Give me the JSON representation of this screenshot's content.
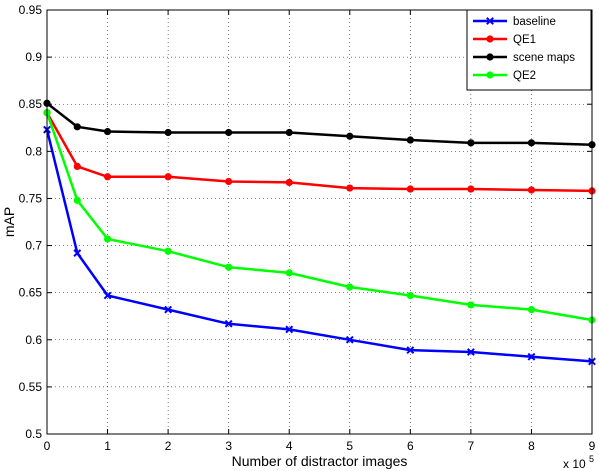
{
  "chart_data": {
    "type": "line",
    "title": "",
    "xlabel": "Number of distractor images",
    "ylabel": "mAP",
    "x_scale_label": {
      "base": "x 10",
      "exponent": "5"
    },
    "xlim": [
      0,
      9
    ],
    "ylim": [
      0.5,
      0.95
    ],
    "xticks": [
      0,
      1,
      2,
      3,
      4,
      5,
      6,
      7,
      8,
      9
    ],
    "yticks": [
      0.5,
      0.55,
      0.6,
      0.65,
      0.7,
      0.75,
      0.8,
      0.85,
      0.9,
      0.95
    ],
    "ytick_labels": [
      "0.5",
      "0.55",
      "0.6",
      "0.65",
      "0.7",
      "0.75",
      "0.8",
      "0.85",
      "0.9",
      "0.95"
    ],
    "grid": true,
    "legend_position": "top-right",
    "x": [
      0,
      0.5,
      1,
      2,
      3,
      4,
      5,
      6,
      7,
      8,
      9
    ],
    "series": [
      {
        "name": "baseline",
        "color": "#0000ff",
        "marker": "x",
        "values": [
          0.823,
          0.692,
          0.647,
          0.632,
          0.617,
          0.611,
          0.6,
          0.589,
          0.587,
          0.582,
          0.577
        ]
      },
      {
        "name": "QE1",
        "color": "#ff0000",
        "marker": "circle",
        "values": [
          0.841,
          0.784,
          0.773,
          0.773,
          0.768,
          0.767,
          0.761,
          0.76,
          0.76,
          0.759,
          0.758
        ]
      },
      {
        "name": "scene maps",
        "color": "#000000",
        "marker": "circle",
        "values": [
          0.851,
          0.826,
          0.821,
          0.82,
          0.82,
          0.82,
          0.816,
          0.812,
          0.809,
          0.809,
          0.807
        ]
      },
      {
        "name": "QE2",
        "color": "#00ff00",
        "marker": "circle",
        "values": [
          0.841,
          0.748,
          0.707,
          0.694,
          0.677,
          0.671,
          0.656,
          0.647,
          0.637,
          0.632,
          0.621
        ]
      }
    ]
  }
}
